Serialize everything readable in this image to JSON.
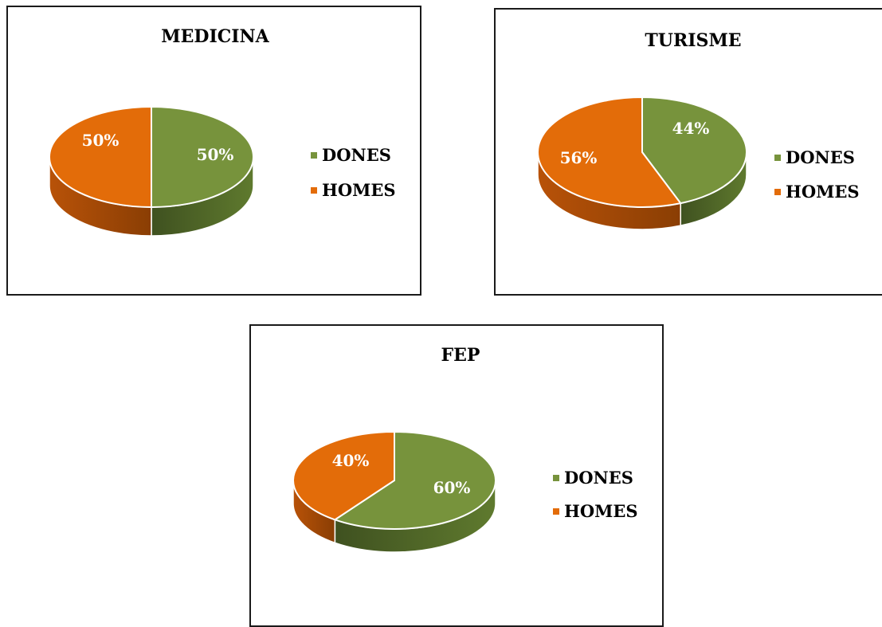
{
  "colors": {
    "dones": "#77933c",
    "homes": "#e36c09",
    "dones_side": "#3f5120",
    "homes_side": "#8a3e04"
  },
  "chart_data": [
    {
      "type": "pie",
      "title": "MEDICINA",
      "categories": [
        "DONES",
        "HOMES"
      ],
      "values": [
        50,
        50
      ],
      "data_labels": [
        "50%",
        "50%"
      ],
      "legend": {
        "placement": "right",
        "entries": [
          "DONES",
          "HOMES"
        ]
      }
    },
    {
      "type": "pie",
      "title": "TURISME",
      "categories": [
        "DONES",
        "HOMES"
      ],
      "values": [
        44,
        56
      ],
      "data_labels": [
        "44%",
        "56%"
      ],
      "legend": {
        "placement": "right",
        "entries": [
          "DONES",
          "HOMES"
        ]
      }
    },
    {
      "type": "pie",
      "title": "FEP",
      "categories": [
        "DONES",
        "HOMES"
      ],
      "values": [
        60,
        40
      ],
      "data_labels": [
        "60%",
        "40%"
      ],
      "legend": {
        "placement": "right",
        "entries": [
          "DONES",
          "HOMES"
        ]
      }
    }
  ]
}
